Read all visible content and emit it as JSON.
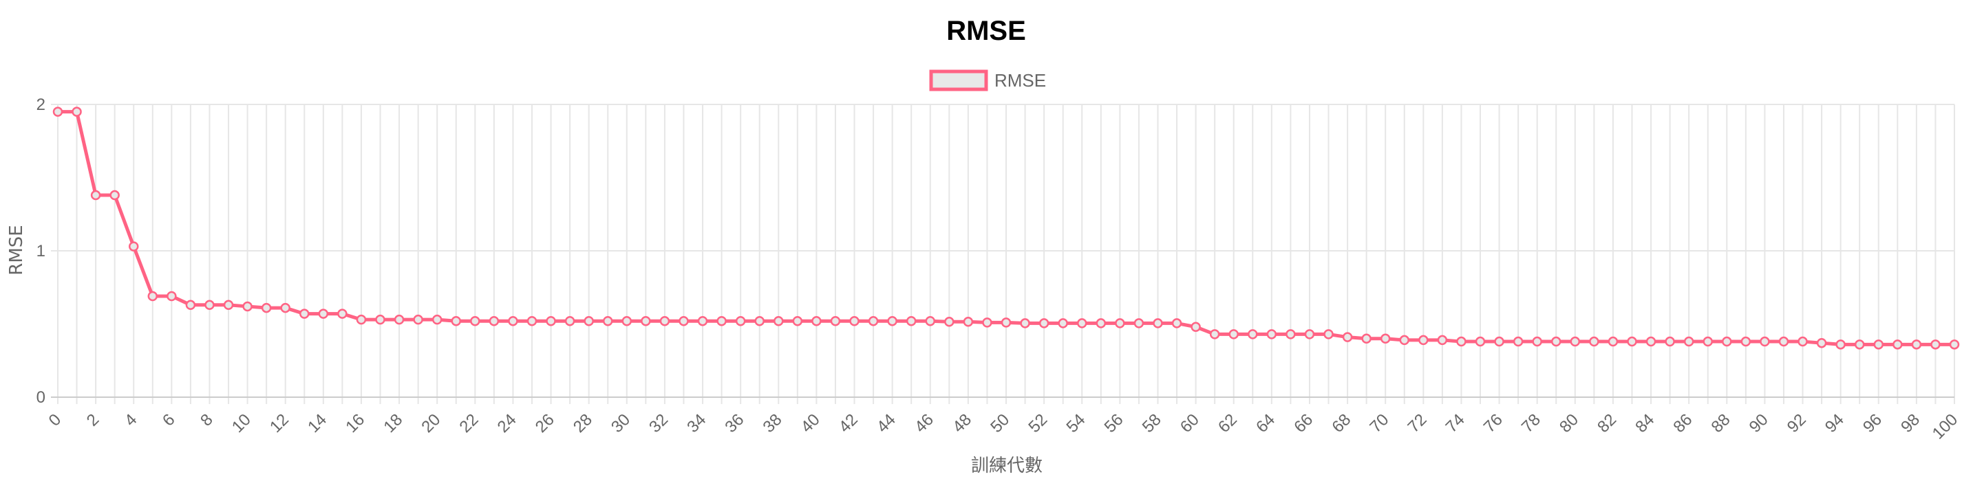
{
  "chart_data": {
    "type": "line",
    "title": "RMSE",
    "xlabel": "訓練代數",
    "ylabel": "RMSE",
    "xlim": [
      0,
      100
    ],
    "ylim": [
      0,
      2
    ],
    "x_ticks": [
      "0",
      "2",
      "4",
      "6",
      "8",
      "10",
      "12",
      "14",
      "16",
      "18",
      "20",
      "22",
      "24",
      "26",
      "28",
      "30",
      "32",
      "34",
      "36",
      "38",
      "40",
      "42",
      "44",
      "46",
      "48",
      "50",
      "52",
      "54",
      "56",
      "58",
      "60",
      "62",
      "64",
      "66",
      "68",
      "70",
      "72",
      "74",
      "76",
      "78",
      "80",
      "82",
      "84",
      "86",
      "88",
      "90",
      "92",
      "94",
      "96",
      "98",
      "100"
    ],
    "y_ticks": [
      "0",
      "1",
      "2"
    ],
    "grid": true,
    "legend": "top-center",
    "series": [
      {
        "name": "RMSE",
        "color": "#ff6384",
        "fill": "#e8e8e8",
        "x": [
          0,
          1,
          2,
          3,
          4,
          5,
          6,
          7,
          8,
          9,
          10,
          11,
          12,
          13,
          14,
          15,
          16,
          17,
          18,
          19,
          20,
          21,
          22,
          23,
          24,
          25,
          26,
          27,
          28,
          29,
          30,
          31,
          32,
          33,
          34,
          35,
          36,
          37,
          38,
          39,
          40,
          41,
          42,
          43,
          44,
          45,
          46,
          47,
          48,
          49,
          50,
          51,
          52,
          53,
          54,
          55,
          56,
          57,
          58,
          59,
          60,
          61,
          62,
          63,
          64,
          65,
          66,
          67,
          68,
          69,
          70,
          71,
          72,
          73,
          74,
          75,
          76,
          77,
          78,
          79,
          80,
          81,
          82,
          83,
          84,
          85,
          86,
          87,
          88,
          89,
          90,
          91,
          92,
          93,
          94,
          95,
          96,
          97,
          98,
          99,
          100
        ],
        "values": [
          1.95,
          1.95,
          1.38,
          1.38,
          1.03,
          0.69,
          0.69,
          0.63,
          0.63,
          0.63,
          0.62,
          0.61,
          0.61,
          0.57,
          0.57,
          0.57,
          0.53,
          0.53,
          0.53,
          0.53,
          0.53,
          0.52,
          0.52,
          0.52,
          0.52,
          0.52,
          0.52,
          0.52,
          0.52,
          0.52,
          0.52,
          0.52,
          0.52,
          0.52,
          0.52,
          0.52,
          0.52,
          0.52,
          0.52,
          0.52,
          0.52,
          0.52,
          0.52,
          0.52,
          0.52,
          0.52,
          0.52,
          0.515,
          0.515,
          0.51,
          0.51,
          0.505,
          0.505,
          0.505,
          0.505,
          0.505,
          0.505,
          0.505,
          0.505,
          0.505,
          0.48,
          0.43,
          0.43,
          0.43,
          0.43,
          0.43,
          0.43,
          0.43,
          0.41,
          0.4,
          0.4,
          0.39,
          0.39,
          0.39,
          0.38,
          0.38,
          0.38,
          0.38,
          0.38,
          0.38,
          0.38,
          0.38,
          0.38,
          0.38,
          0.38,
          0.38,
          0.38,
          0.38,
          0.38,
          0.38,
          0.38,
          0.38,
          0.38,
          0.37,
          0.36,
          0.36,
          0.36,
          0.36,
          0.36,
          0.36,
          0.36
        ]
      }
    ]
  }
}
